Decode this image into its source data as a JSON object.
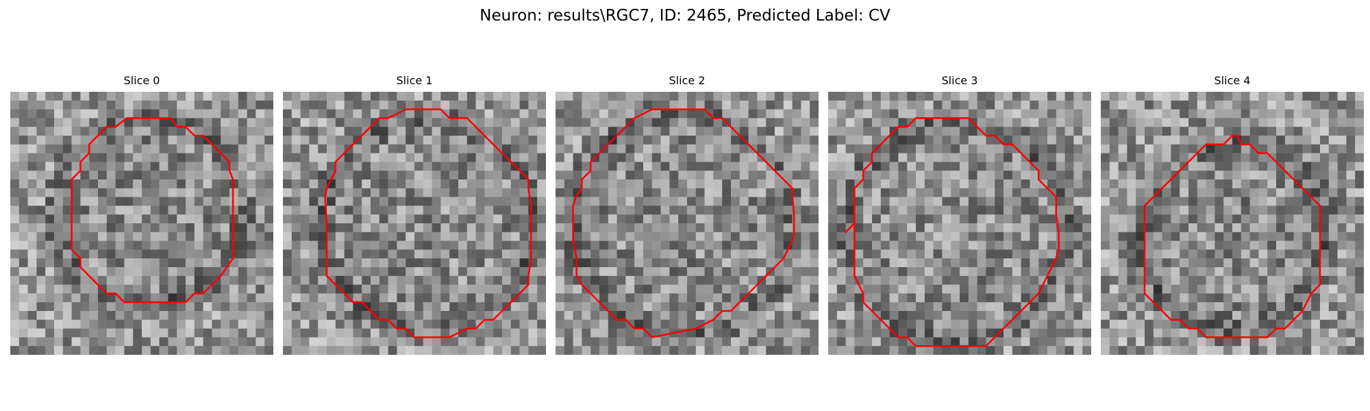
{
  "figure": {
    "title": "Neuron: results\\RGC7, ID: 2465, Predicted Label: CV",
    "outline_color": "#ff0000"
  },
  "slices": [
    {
      "title": "Slice 0"
    },
    {
      "title": "Slice 1"
    },
    {
      "title": "Slice 2"
    },
    {
      "title": "Slice 3"
    },
    {
      "title": "Slice 4"
    }
  ]
}
